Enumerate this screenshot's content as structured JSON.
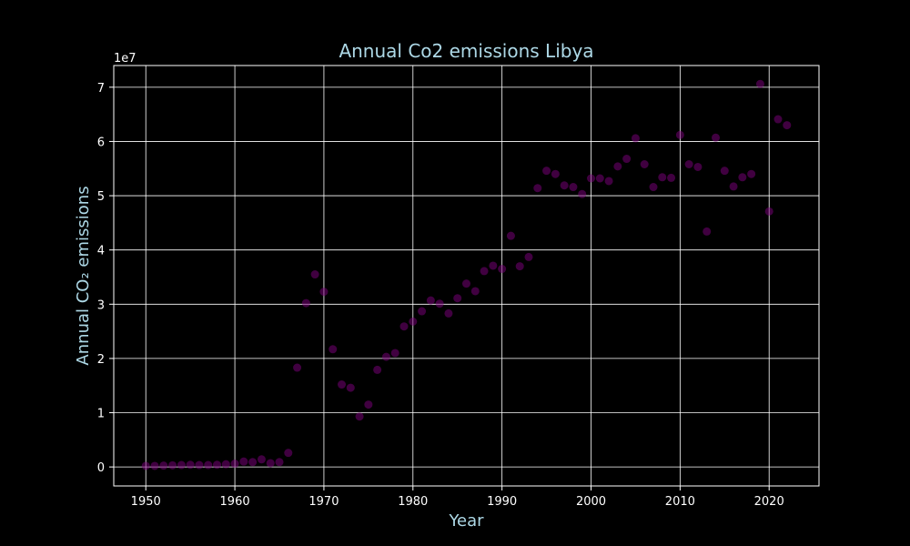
{
  "chart_data": {
    "type": "scatter",
    "title": "Annual Co2 emissions Libya",
    "xlabel": "Year",
    "ylabel": "Annual CO₂ emissions",
    "y_offset_label": "1e7",
    "xlim": [
      1946.4,
      2025.6
    ],
    "ylim": [
      -3500000,
      74000000
    ],
    "x_ticks": [
      1950,
      1960,
      1970,
      1980,
      1990,
      2000,
      2010,
      2020
    ],
    "y_ticks": [
      0,
      10000000,
      20000000,
      30000000,
      40000000,
      50000000,
      60000000,
      70000000
    ],
    "y_tick_labels": [
      "0",
      "1",
      "2",
      "3",
      "4",
      "5",
      "6",
      "7"
    ],
    "grid": true,
    "colors": {
      "background": "#000000",
      "grid": "#ffffff",
      "text": "#ffffff",
      "title": "#add8e6",
      "marker": "#800080"
    },
    "series": [
      {
        "x": [
          1950,
          1951,
          1952,
          1953,
          1954,
          1955,
          1956,
          1957,
          1958,
          1959,
          1960,
          1961,
          1962,
          1963,
          1964,
          1965,
          1966,
          1967,
          1968,
          1969,
          1970,
          1971,
          1972,
          1973,
          1974,
          1975,
          1976,
          1977,
          1978,
          1979,
          1980,
          1981,
          1982,
          1983,
          1984,
          1985,
          1986,
          1987,
          1988,
          1989,
          1990,
          1991,
          1992,
          1993,
          1994,
          1995,
          1996,
          1997,
          1998,
          1999,
          2000,
          2001,
          2002,
          2003,
          2004,
          2005,
          2006,
          2007,
          2008,
          2009,
          2010,
          2011,
          2012,
          2013,
          2014,
          2015,
          2016,
          2017,
          2018,
          2019,
          2020,
          2021,
          2022
        ],
        "y": [
          200000,
          200000,
          250000,
          300000,
          350000,
          400000,
          350000,
          350000,
          400000,
          500000,
          600000,
          1000000,
          900000,
          1400000,
          700000,
          900000,
          2600000,
          18300000,
          30200000,
          35500000,
          32300000,
          21700000,
          15200000,
          14600000,
          9300000,
          11500000,
          17900000,
          20300000,
          21000000,
          25900000,
          26800000,
          28700000,
          30700000,
          30100000,
          28300000,
          31100000,
          33800000,
          32400000,
          36100000,
          37100000,
          36500000,
          42600000,
          37000000,
          38700000,
          51400000,
          54600000,
          54000000,
          51900000,
          51600000,
          50300000,
          53200000,
          53200000,
          52700000,
          55400000,
          56800000,
          60600000,
          55800000,
          51600000,
          53400000,
          53300000,
          61200000,
          55800000,
          55300000,
          43400000,
          60700000,
          54600000,
          51700000,
          53400000,
          54000000,
          70600000,
          47100000,
          64100000,
          63000000
        ]
      }
    ]
  }
}
